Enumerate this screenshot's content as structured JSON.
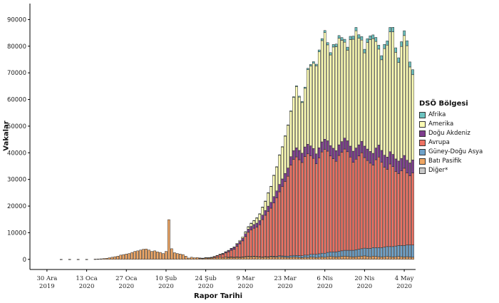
{
  "chart_data": {
    "type": "bar",
    "stacked": true,
    "xlabel": "Rapor Tarihi",
    "ylabel": "Vakalar",
    "ylim": [
      0,
      96000
    ],
    "yticks": [
      0,
      10000,
      20000,
      30000,
      40000,
      50000,
      60000,
      70000,
      80000,
      90000
    ],
    "xticks": [
      {
        "day": 0,
        "label": "30 Ara\n2019"
      },
      {
        "day": 14,
        "label": "13 Oca\n2020"
      },
      {
        "day": 28,
        "label": "27 Oca\n2020"
      },
      {
        "day": 42,
        "label": "10 Şub\n2020"
      },
      {
        "day": 56,
        "label": "24 Şub\n2020"
      },
      {
        "day": 70,
        "label": "9 Mar\n2020"
      },
      {
        "day": 84,
        "label": "23 Mar\n2020"
      },
      {
        "day": 98,
        "label": "6 Nis\n2020"
      },
      {
        "day": 112,
        "label": "20 Nis\n2020"
      },
      {
        "day": 126,
        "label": "4 May\n2020"
      }
    ],
    "legend": {
      "title": "DSÖ Bölgesi",
      "position": "right",
      "items": [
        {
          "name": "Afrika",
          "color": "#6cc3c0"
        },
        {
          "name": "Amerika",
          "color": "#fdfdb5"
        },
        {
          "name": "Doğu Akdeniz",
          "color": "#7e3d8e"
        },
        {
          "name": "Avrupa",
          "color": "#ee7263"
        },
        {
          "name": "Güney-Doğu Asya",
          "color": "#6fa2c9"
        },
        {
          "name": "Batı Pasifik",
          "color": "#efa664"
        },
        {
          "name": "Diğer*",
          "color": "#c8c8c8"
        }
      ]
    },
    "first_day": 3,
    "series": [
      {
        "name": "Afrika",
        "values": [
          0,
          0,
          0,
          0,
          0,
          0,
          0,
          0,
          0,
          0,
          0,
          0,
          0,
          0,
          0,
          0,
          0,
          0,
          0,
          0,
          0,
          0,
          0,
          0,
          0,
          0,
          0,
          0,
          0,
          0,
          0,
          0,
          0,
          0,
          0,
          0,
          0,
          0,
          0,
          0,
          0,
          0,
          0,
          0,
          0,
          0,
          0,
          0,
          0,
          0,
          0,
          0,
          0,
          0,
          0,
          0,
          0,
          0,
          0,
          0,
          0,
          0,
          0,
          0,
          0,
          0,
          0,
          10,
          10,
          10,
          20,
          20,
          20,
          30,
          30,
          40,
          50,
          60,
          80,
          100,
          120,
          150,
          180,
          200,
          250,
          300,
          350,
          400,
          450,
          500,
          550,
          600,
          650,
          700,
          750,
          800,
          850,
          900,
          950,
          1000,
          1000,
          1050,
          1100,
          1150,
          1200,
          1200,
          1250,
          1300,
          1300,
          1350,
          1400,
          1400,
          1450,
          1500,
          1500,
          1550,
          1600,
          1600,
          1650,
          1700,
          1700,
          1750,
          1800,
          1800,
          1850,
          1900,
          1900
        ]
      },
      {
        "name": "Amerika",
        "values": [
          0,
          0,
          0,
          0,
          0,
          0,
          0,
          0,
          0,
          0,
          0,
          0,
          0,
          0,
          0,
          0,
          0,
          0,
          0,
          0,
          0,
          0,
          0,
          0,
          0,
          0,
          0,
          0,
          0,
          0,
          0,
          0,
          0,
          0,
          0,
          0,
          0,
          0,
          0,
          0,
          0,
          0,
          0,
          0,
          0,
          0,
          0,
          0,
          0,
          0,
          0,
          0,
          10,
          10,
          20,
          20,
          30,
          40,
          50,
          60,
          80,
          100,
          150,
          200,
          300,
          400,
          500,
          700,
          900,
          1200,
          1500,
          2000,
          2500,
          3000,
          3500,
          5000,
          6000,
          8000,
          9000,
          11000,
          12000,
          14000,
          16000,
          17000,
          20000,
          23000,
          20000,
          19000,
          22000,
          28000,
          30000,
          32000,
          33000,
          36000,
          38000,
          40000,
          36000,
          34000,
          38000,
          39000,
          40000,
          38000,
          36000,
          34000,
          40000,
          42000,
          44000,
          40000,
          38000,
          35000,
          40000,
          42000,
          43000,
          40000,
          36000,
          34000,
          40000,
          42000,
          45000,
          46000,
          40000,
          37000,
          42000,
          45000,
          43000,
          36000,
          32000
        ]
      },
      {
        "name": "Doğu Akdeniz",
        "values": [
          0,
          0,
          0,
          0,
          0,
          0,
          0,
          0,
          0,
          0,
          0,
          0,
          0,
          0,
          0,
          0,
          0,
          0,
          0,
          0,
          0,
          0,
          0,
          0,
          0,
          0,
          0,
          0,
          0,
          0,
          0,
          0,
          0,
          0,
          0,
          0,
          0,
          0,
          0,
          0,
          0,
          0,
          0,
          0,
          0,
          0,
          0,
          0,
          0,
          0,
          0,
          10,
          20,
          40,
          60,
          80,
          100,
          150,
          200,
          300,
          400,
          500,
          600,
          700,
          800,
          900,
          1000,
          1100,
          1200,
          1300,
          1400,
          1500,
          1600,
          1700,
          1800,
          2000,
          2200,
          2400,
          2600,
          2800,
          2900,
          3000,
          3100,
          3200,
          3300,
          3400,
          3500,
          3500,
          3600,
          3600,
          3700,
          3700,
          3700,
          3800,
          3800,
          3800,
          3900,
          3900,
          3900,
          4000,
          4000,
          4000,
          4100,
          4100,
          4100,
          4200,
          4200,
          4200,
          4300,
          4300,
          4300,
          4400,
          4400,
          4400,
          4500,
          4500,
          4500,
          4600,
          4600,
          4600,
          4700,
          4700,
          4700,
          4800,
          4800,
          4800,
          4900,
          4900,
          4900
        ]
      },
      {
        "name": "Avrupa",
        "values": [
          0,
          0,
          0,
          0,
          0,
          0,
          0,
          0,
          0,
          0,
          0,
          0,
          0,
          0,
          0,
          0,
          0,
          0,
          0,
          0,
          0,
          0,
          0,
          0,
          0,
          0,
          0,
          0,
          0,
          0,
          0,
          0,
          0,
          0,
          0,
          0,
          0,
          0,
          0,
          0,
          0,
          0,
          0,
          0,
          0,
          0,
          0,
          0,
          0,
          0,
          0,
          0,
          20,
          40,
          100,
          200,
          400,
          600,
          900,
          1200,
          1500,
          2000,
          2500,
          3000,
          4000,
          5000,
          6000,
          7500,
          9000,
          10000,
          10500,
          11000,
          12000,
          14000,
          15500,
          17000,
          18000,
          20000,
          22000,
          24000,
          26000,
          28000,
          30000,
          34000,
          36000,
          37000,
          36000,
          35000,
          37000,
          38000,
          37000,
          36000,
          34000,
          36000,
          38000,
          39000,
          38000,
          36000,
          35000,
          34000,
          36000,
          37000,
          38000,
          37000,
          35000,
          33000,
          34000,
          35000,
          36000,
          34000,
          33000,
          32000,
          31000,
          33000,
          34000,
          32000,
          30000,
          29000,
          31000,
          30000,
          28000,
          27000,
          28000,
          29000,
          27000,
          26000,
          27000
        ]
      },
      {
        "name": "Güney-Doğu Asya",
        "values": [
          0,
          0,
          0,
          0,
          0,
          0,
          0,
          0,
          0,
          0,
          0,
          0,
          0,
          0,
          0,
          0,
          0,
          0,
          0,
          0,
          0,
          0,
          0,
          0,
          0,
          0,
          0,
          0,
          0,
          0,
          0,
          0,
          0,
          0,
          0,
          0,
          0,
          0,
          0,
          0,
          0,
          0,
          0,
          0,
          0,
          0,
          0,
          0,
          0,
          0,
          0,
          0,
          0,
          0,
          0,
          0,
          0,
          0,
          0,
          0,
          0,
          5,
          10,
          15,
          20,
          30,
          40,
          50,
          60,
          70,
          80,
          90,
          100,
          120,
          150,
          180,
          200,
          250,
          300,
          350,
          400,
          450,
          500,
          550,
          600,
          650,
          700,
          750,
          800,
          900,
          1000,
          1100,
          1200,
          1300,
          1400,
          1500,
          1600,
          1700,
          1800,
          1900,
          2000,
          2100,
          2200,
          2300,
          2400,
          2500,
          2600,
          2700,
          2800,
          2900,
          3000,
          3100,
          3200,
          3300,
          3400,
          3500,
          3600,
          3700,
          3800,
          3900,
          4000,
          4100,
          4200,
          4300,
          4400,
          4500,
          4600
        ]
      },
      {
        "name": "Batı Pasifik",
        "values": [
          0,
          0,
          20,
          0,
          0,
          40,
          0,
          0,
          20,
          0,
          0,
          30,
          0,
          0,
          100,
          150,
          200,
          300,
          400,
          600,
          800,
          1000,
          1200,
          1600,
          1800,
          2000,
          2200,
          2600,
          3000,
          3200,
          3500,
          3800,
          3900,
          3500,
          3000,
          3200,
          2800,
          2600,
          2200,
          3000,
          14900,
          4000,
          2500,
          2200,
          2000,
          1800,
          1200,
          500,
          800,
          600,
          700,
          500,
          400,
          600,
          500,
          500,
          600,
          700,
          800,
          700,
          900,
          800,
          900,
          800,
          900,
          800,
          900,
          1000,
          1100,
          1000,
          1100,
          1000,
          900,
          800,
          900,
          800,
          1000,
          900,
          800,
          1000,
          900,
          800,
          700,
          800,
          900,
          800,
          700,
          600,
          800,
          700,
          900,
          800,
          700,
          800,
          900,
          800,
          1000,
          1100,
          1000,
          900,
          1000,
          1100,
          1200,
          1100,
          1000,
          900,
          1000,
          1100,
          1200,
          1300,
          1100,
          1000,
          1200,
          1100,
          1000,
          900,
          1000,
          1100,
          1000,
          900,
          1000,
          1100,
          1000,
          900,
          1000,
          900,
          800,
          900,
          1000
        ]
      },
      {
        "name": "Diğer*",
        "values": [
          0,
          0,
          0,
          0,
          0,
          0,
          0,
          0,
          0,
          0,
          0,
          0,
          0,
          0,
          0,
          0,
          0,
          0,
          0,
          0,
          0,
          0,
          0,
          0,
          0,
          0,
          0,
          0,
          0,
          0,
          0,
          0,
          0,
          0,
          0,
          0,
          0,
          0,
          0,
          0,
          0,
          0,
          0,
          0,
          0,
          0,
          0,
          0,
          0,
          0,
          0,
          0,
          0,
          0,
          0,
          0,
          0,
          0,
          0,
          0,
          0,
          0,
          0,
          0,
          0,
          0,
          0,
          0,
          0,
          0,
          0,
          0,
          0,
          0,
          0,
          0,
          0,
          0,
          0,
          0,
          0,
          0,
          0,
          0,
          0,
          0,
          0,
          0,
          0,
          0,
          0,
          0,
          0,
          0,
          0,
          0,
          0,
          0,
          0,
          0,
          0,
          0,
          0,
          0,
          0,
          0,
          0,
          0,
          0,
          0,
          0,
          0,
          0,
          0,
          0,
          0,
          0,
          0,
          0,
          0,
          0,
          0,
          0,
          0,
          0,
          0,
          0,
          0,
          0,
          0,
          0,
          0,
          0,
          0
        ]
      }
    ]
  }
}
